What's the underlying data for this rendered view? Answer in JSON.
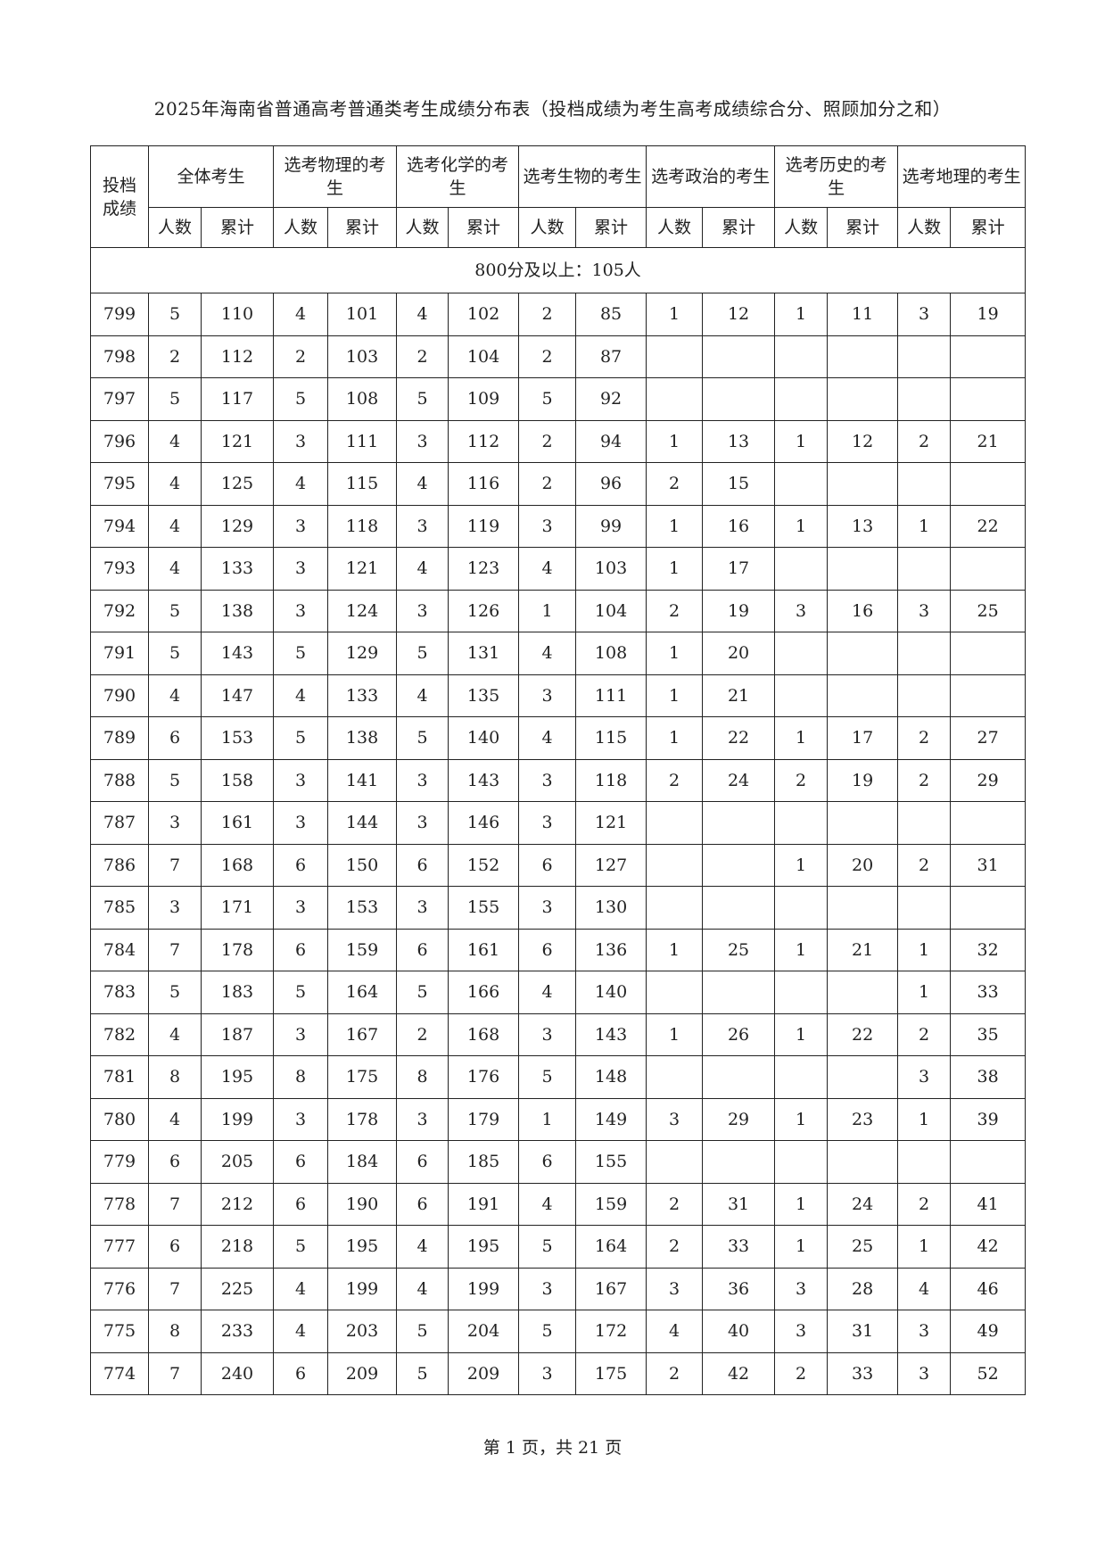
{
  "title": "2025年海南省普通高考普通类考生成绩分布表（投档成绩为考生高考成绩综合分、照顾加分之和）",
  "table": {
    "score_header": "投档成绩",
    "groups": [
      "全体考生",
      "选考物理的考生",
      "选考化学的考生",
      "选考生物的考生",
      "选考政治的考生",
      "选考历史的考生",
      "选考地理的考生"
    ],
    "sub_headers": [
      "人数",
      "累计"
    ],
    "section_label": "800分及以上：105人",
    "rows": [
      [
        "799",
        "5",
        "110",
        "4",
        "101",
        "4",
        "102",
        "2",
        "85",
        "1",
        "12",
        "1",
        "11",
        "3",
        "19"
      ],
      [
        "798",
        "2",
        "112",
        "2",
        "103",
        "2",
        "104",
        "2",
        "87",
        "",
        "",
        "",
        "",
        "",
        ""
      ],
      [
        "797",
        "5",
        "117",
        "5",
        "108",
        "5",
        "109",
        "5",
        "92",
        "",
        "",
        "",
        "",
        "",
        ""
      ],
      [
        "796",
        "4",
        "121",
        "3",
        "111",
        "3",
        "112",
        "2",
        "94",
        "1",
        "13",
        "1",
        "12",
        "2",
        "21"
      ],
      [
        "795",
        "4",
        "125",
        "4",
        "115",
        "4",
        "116",
        "2",
        "96",
        "2",
        "15",
        "",
        "",
        "",
        ""
      ],
      [
        "794",
        "4",
        "129",
        "3",
        "118",
        "3",
        "119",
        "3",
        "99",
        "1",
        "16",
        "1",
        "13",
        "1",
        "22"
      ],
      [
        "793",
        "4",
        "133",
        "3",
        "121",
        "4",
        "123",
        "4",
        "103",
        "1",
        "17",
        "",
        "",
        "",
        ""
      ],
      [
        "792",
        "5",
        "138",
        "3",
        "124",
        "3",
        "126",
        "1",
        "104",
        "2",
        "19",
        "3",
        "16",
        "3",
        "25"
      ],
      [
        "791",
        "5",
        "143",
        "5",
        "129",
        "5",
        "131",
        "4",
        "108",
        "1",
        "20",
        "",
        "",
        "",
        ""
      ],
      [
        "790",
        "4",
        "147",
        "4",
        "133",
        "4",
        "135",
        "3",
        "111",
        "1",
        "21",
        "",
        "",
        "",
        ""
      ],
      [
        "789",
        "6",
        "153",
        "5",
        "138",
        "5",
        "140",
        "4",
        "115",
        "1",
        "22",
        "1",
        "17",
        "2",
        "27"
      ],
      [
        "788",
        "5",
        "158",
        "3",
        "141",
        "3",
        "143",
        "3",
        "118",
        "2",
        "24",
        "2",
        "19",
        "2",
        "29"
      ],
      [
        "787",
        "3",
        "161",
        "3",
        "144",
        "3",
        "146",
        "3",
        "121",
        "",
        "",
        "",
        "",
        "",
        ""
      ],
      [
        "786",
        "7",
        "168",
        "6",
        "150",
        "6",
        "152",
        "6",
        "127",
        "",
        "",
        "1",
        "20",
        "2",
        "31"
      ],
      [
        "785",
        "3",
        "171",
        "3",
        "153",
        "3",
        "155",
        "3",
        "130",
        "",
        "",
        "",
        "",
        "",
        ""
      ],
      [
        "784",
        "7",
        "178",
        "6",
        "159",
        "6",
        "161",
        "6",
        "136",
        "1",
        "25",
        "1",
        "21",
        "1",
        "32"
      ],
      [
        "783",
        "5",
        "183",
        "5",
        "164",
        "5",
        "166",
        "4",
        "140",
        "",
        "",
        "",
        "",
        "1",
        "33"
      ],
      [
        "782",
        "4",
        "187",
        "3",
        "167",
        "2",
        "168",
        "3",
        "143",
        "1",
        "26",
        "1",
        "22",
        "2",
        "35"
      ],
      [
        "781",
        "8",
        "195",
        "8",
        "175",
        "8",
        "176",
        "5",
        "148",
        "",
        "",
        "",
        "",
        "3",
        "38"
      ],
      [
        "780",
        "4",
        "199",
        "3",
        "178",
        "3",
        "179",
        "1",
        "149",
        "3",
        "29",
        "1",
        "23",
        "1",
        "39"
      ],
      [
        "779",
        "6",
        "205",
        "6",
        "184",
        "6",
        "185",
        "6",
        "155",
        "",
        "",
        "",
        "",
        "",
        ""
      ],
      [
        "778",
        "7",
        "212",
        "6",
        "190",
        "6",
        "191",
        "4",
        "159",
        "2",
        "31",
        "1",
        "24",
        "2",
        "41"
      ],
      [
        "777",
        "6",
        "218",
        "5",
        "195",
        "4",
        "195",
        "5",
        "164",
        "2",
        "33",
        "1",
        "25",
        "1",
        "42"
      ],
      [
        "776",
        "7",
        "225",
        "4",
        "199",
        "4",
        "199",
        "3",
        "167",
        "3",
        "36",
        "3",
        "28",
        "4",
        "46"
      ],
      [
        "775",
        "8",
        "233",
        "4",
        "203",
        "5",
        "204",
        "5",
        "172",
        "4",
        "40",
        "3",
        "31",
        "3",
        "49"
      ],
      [
        "774",
        "7",
        "240",
        "6",
        "209",
        "5",
        "209",
        "3",
        "175",
        "2",
        "42",
        "2",
        "33",
        "3",
        "52"
      ]
    ]
  },
  "footer": "第 1 页，共 21 页"
}
